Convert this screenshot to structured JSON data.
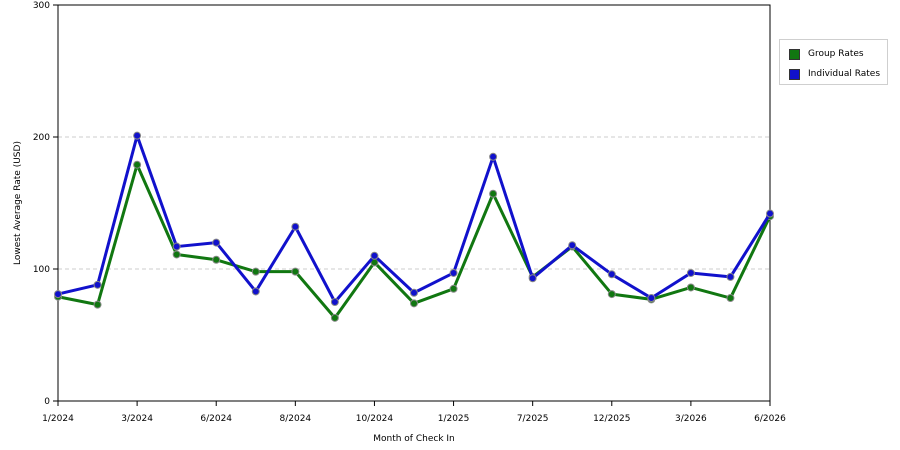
{
  "chart_data": {
    "type": "line",
    "xlabel": "Month of Check In",
    "ylabel": "Lowest Average Rate (USD)",
    "ylim": [
      0,
      300
    ],
    "yticks": [
      0,
      100,
      200,
      300
    ],
    "grid": "horizontal dashed at 100 and 200",
    "x_tick_labels": [
      {
        "index": 0,
        "label": "1/2024"
      },
      {
        "index": 2,
        "label": "3/2024"
      },
      {
        "index": 4,
        "label": "6/2024"
      },
      {
        "index": 6,
        "label": "8/2024"
      },
      {
        "index": 8,
        "label": "10/2024"
      },
      {
        "index": 10,
        "label": "1/2025"
      },
      {
        "index": 12,
        "label": "7/2025"
      },
      {
        "index": 14,
        "label": "12/2025"
      },
      {
        "index": 16,
        "label": "3/2026"
      },
      {
        "index": 18,
        "label": "6/2026"
      }
    ],
    "series": [
      {
        "name": "Group Rates",
        "color": "#117711",
        "values": [
          79,
          73,
          179,
          111,
          107,
          98,
          98,
          63,
          105,
          74,
          85,
          157,
          94,
          117,
          81,
          77,
          86,
          78,
          140
        ]
      },
      {
        "name": "Individual Rates",
        "color": "#1111cc",
        "values": [
          81,
          88,
          201,
          117,
          120,
          83,
          132,
          75,
          110,
          82,
          97,
          185,
          93,
          118,
          96,
          78,
          97,
          94,
          142
        ]
      }
    ],
    "legend_position": "right"
  }
}
